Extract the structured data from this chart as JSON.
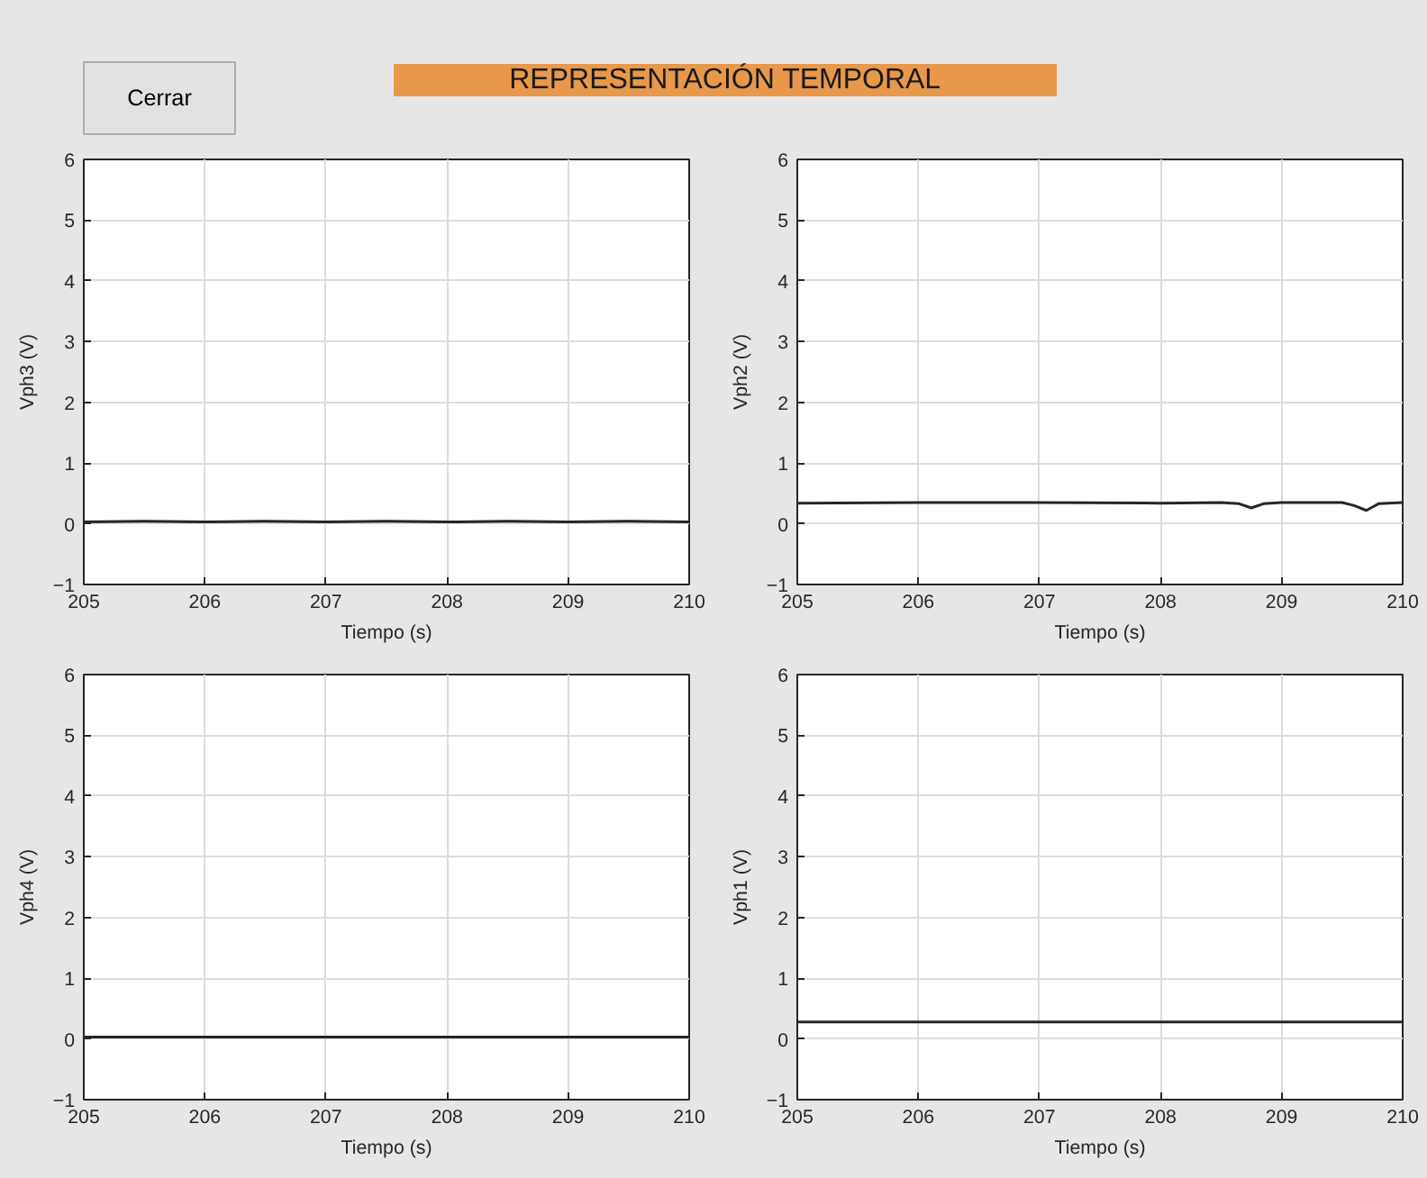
{
  "chart_data": [
    {
      "type": "other",
      "title": "REPRESENTACIÓN TEMPORAL",
      "annotations": [
        "Cerrar"
      ]
    },
    {
      "type": "line",
      "xlabel": "Tiempo (s)",
      "ylabel": "Vph3 (V)",
      "xlim": [
        205,
        210
      ],
      "ylim": [
        -1,
        6
      ],
      "xticks": [
        205,
        206,
        207,
        208,
        209,
        210
      ],
      "yticks": [
        -1,
        0,
        1,
        2,
        3,
        4,
        5,
        6
      ],
      "grid": true,
      "x": [
        205,
        205.5,
        206,
        206.5,
        207,
        207.5,
        208,
        208.5,
        209,
        209.5,
        210
      ],
      "series": [
        {
          "color": "#262626",
          "values": [
            0.03,
            0.04,
            0.03,
            0.04,
            0.03,
            0.04,
            0.03,
            0.04,
            0.03,
            0.04,
            0.03
          ]
        }
      ]
    },
    {
      "type": "line",
      "xlabel": "Tiempo (s)",
      "ylabel": "Vph2 (V)",
      "xlim": [
        205,
        210
      ],
      "ylim": [
        -1,
        6
      ],
      "xticks": [
        205,
        206,
        207,
        208,
        209,
        210
      ],
      "yticks": [
        -1,
        0,
        1,
        2,
        3,
        4,
        5,
        6
      ],
      "grid": true,
      "x": [
        205,
        206,
        207,
        208,
        208.5,
        208.65,
        208.75,
        208.85,
        209,
        209.5,
        209.6,
        209.7,
        209.8,
        210
      ],
      "series": [
        {
          "color": "#262626",
          "values": [
            0.34,
            0.35,
            0.35,
            0.34,
            0.35,
            0.33,
            0.26,
            0.33,
            0.35,
            0.35,
            0.3,
            0.22,
            0.33,
            0.35
          ]
        }
      ]
    },
    {
      "type": "line",
      "xlabel": "Tiempo (s)",
      "ylabel": "Vph4 (V)",
      "xlim": [
        205,
        210
      ],
      "ylim": [
        -1,
        6
      ],
      "xticks": [
        205,
        206,
        207,
        208,
        209,
        210
      ],
      "yticks": [
        -1,
        0,
        1,
        2,
        3,
        4,
        5,
        6
      ],
      "grid": true,
      "x": [
        205,
        206,
        207,
        208,
        209,
        210
      ],
      "series": [
        {
          "color": "#262626",
          "values": [
            0.03,
            0.03,
            0.03,
            0.03,
            0.03,
            0.03
          ]
        }
      ]
    },
    {
      "type": "line",
      "xlabel": "Tiempo (s)",
      "ylabel": "Vph1 (V)",
      "xlim": [
        205,
        210
      ],
      "ylim": [
        -1,
        6
      ],
      "xticks": [
        205,
        206,
        207,
        208,
        209,
        210
      ],
      "yticks": [
        -1,
        0,
        1,
        2,
        3,
        4,
        5,
        6
      ],
      "grid": true,
      "x": [
        205,
        206,
        207,
        208,
        209,
        210
      ],
      "series": [
        {
          "color": "#262626",
          "values": [
            0.28,
            0.28,
            0.28,
            0.28,
            0.28,
            0.28
          ]
        }
      ]
    }
  ]
}
